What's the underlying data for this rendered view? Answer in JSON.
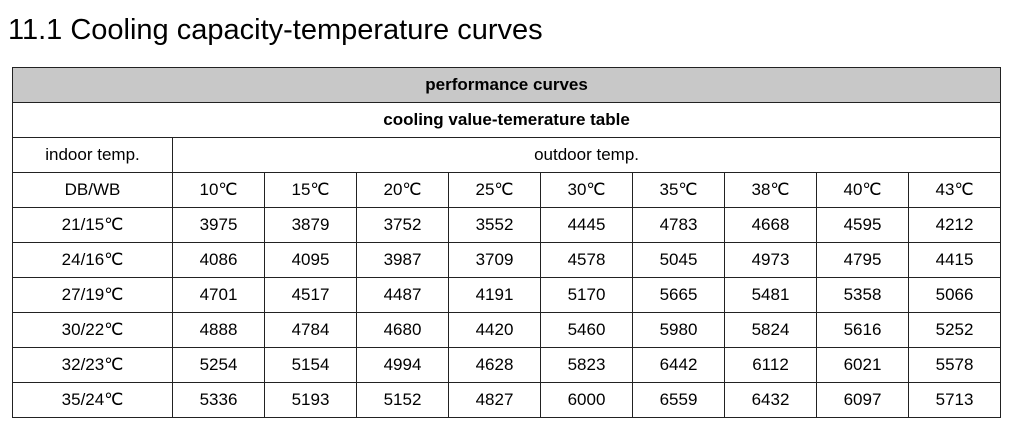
{
  "title": "11.1 Cooling capacity-temperature curves",
  "table": {
    "caption": "performance curves",
    "subtitle": "cooling value-temerature table",
    "row_header": "indoor temp.",
    "column_group": "outdoor temp.",
    "corner": "DB/WB",
    "columns": [
      "10℃",
      "15℃",
      "20℃",
      "25℃",
      "30℃",
      "35℃",
      "38℃",
      "40℃",
      "43℃"
    ],
    "rows": [
      {
        "label": "21/15℃",
        "values": [
          3975,
          3879,
          3752,
          3552,
          4445,
          4783,
          4668,
          4595,
          4212
        ]
      },
      {
        "label": "24/16℃",
        "values": [
          4086,
          4095,
          3987,
          3709,
          4578,
          5045,
          4973,
          4795,
          4415
        ]
      },
      {
        "label": "27/19℃",
        "values": [
          4701,
          4517,
          4487,
          4191,
          5170,
          5665,
          5481,
          5358,
          5066
        ]
      },
      {
        "label": "30/22℃",
        "values": [
          4888,
          4784,
          4680,
          4420,
          5460,
          5980,
          5824,
          5616,
          5252
        ]
      },
      {
        "label": "32/23℃",
        "values": [
          5254,
          5154,
          4994,
          4628,
          5823,
          6442,
          6112,
          6021,
          5578
        ]
      },
      {
        "label": "35/24℃",
        "values": [
          5336,
          5193,
          5152,
          4827,
          6000,
          6559,
          6432,
          6097,
          5713
        ]
      }
    ]
  }
}
